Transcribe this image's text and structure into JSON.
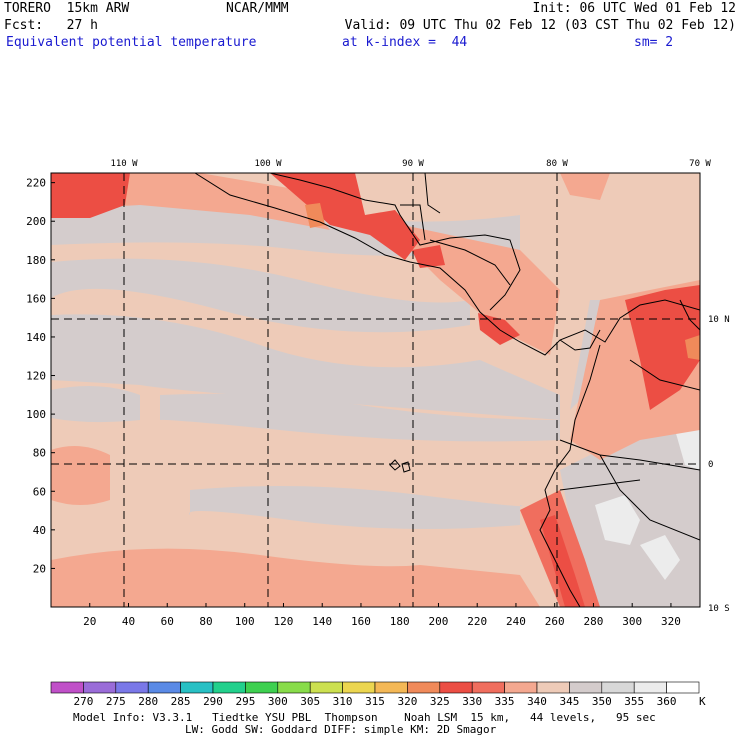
{
  "header": {
    "model": "TORERO  15km ARW",
    "org": "NCAR/MMM",
    "init": "Init: 06 UTC Wed 01 Feb 12",
    "fcst": "Fcst:   27 h",
    "valid": "Valid: 09 UTC Thu 02 Feb 12 (03 CST Thu 02 Feb 12)",
    "field": "Equivalent potential temperature",
    "level": "at k-index =  44",
    "smooth": "sm= 2"
  },
  "map": {
    "lon_labels": [
      "110 W",
      "100 W",
      "90 W",
      "80 W",
      "70 W"
    ],
    "lat_labels": [
      "10 N",
      "0",
      "10 S"
    ],
    "y_ticks": [
      "220",
      "200",
      "180",
      "160",
      "140",
      "120",
      "100",
      "80",
      "60",
      "40",
      "20"
    ],
    "x_ticks": [
      "20",
      "40",
      "60",
      "80",
      "100",
      "120",
      "140",
      "160",
      "180",
      "200",
      "220",
      "240",
      "260",
      "280",
      "300",
      "320"
    ]
  },
  "colorbar": {
    "unit": "K",
    "levels": [
      "270",
      "275",
      "280",
      "285",
      "290",
      "295",
      "300",
      "305",
      "310",
      "315",
      "320",
      "325",
      "330",
      "335",
      "340",
      "345",
      "350",
      "355",
      "360"
    ],
    "colors": [
      "#c050c8",
      "#9a6cd8",
      "#7a78e8",
      "#5a8ae6",
      "#28c0c4",
      "#22d08c",
      "#3ed050",
      "#88dc4a",
      "#cce050",
      "#ecd650",
      "#f4b856",
      "#f08a5a",
      "#ec4e44",
      "#f06e5e",
      "#f4a890",
      "#eecbb8",
      "#d4cccc",
      "#d8d8d8",
      "#ececec",
      "#ffffff"
    ]
  },
  "footer": {
    "line1": "Model Info: V3.3.1   Tiedtke YSU PBL  Thompson    Noah LSM  15 km,   44 levels,   95 sec",
    "line2": "LW: Godd SW: Goddard DIFF: simple KM: 2D Smagor"
  }
}
